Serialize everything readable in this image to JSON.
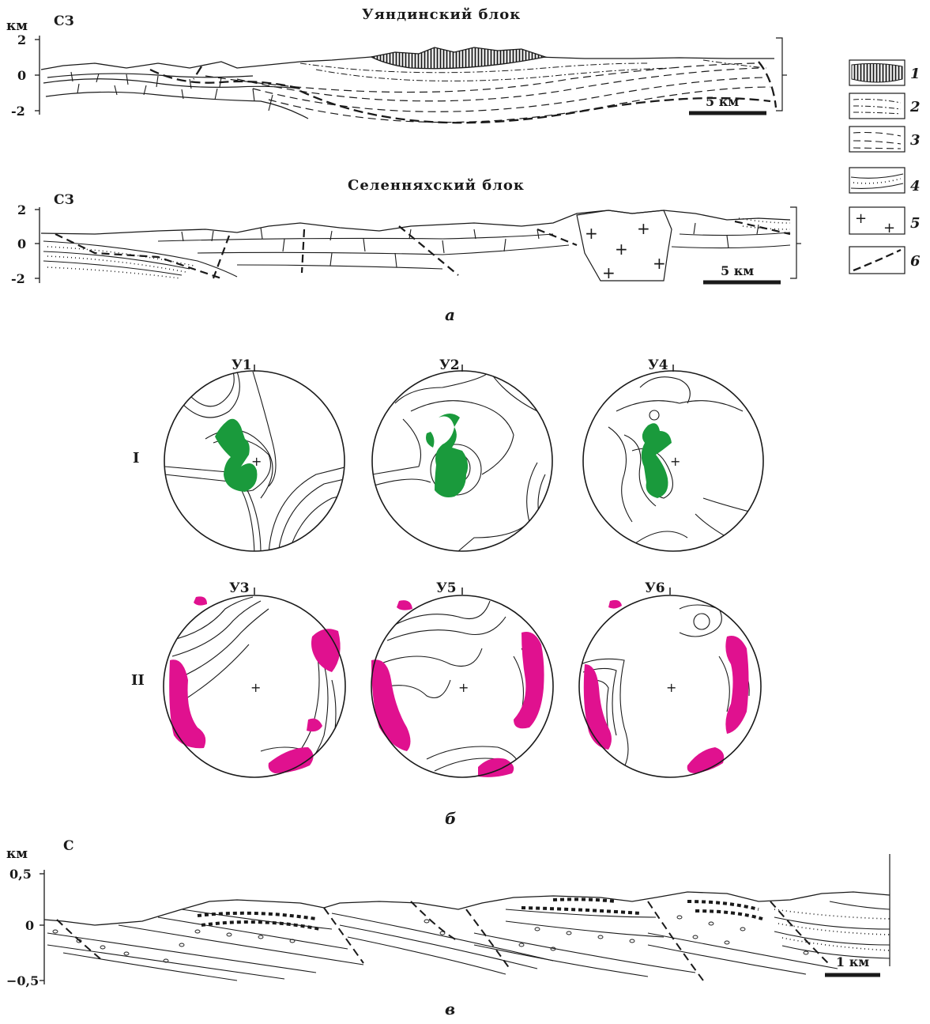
{
  "section_a": {
    "unit": "км",
    "profile1": {
      "title": "Уяндинский блок",
      "direction": "СЗ",
      "ticks": [
        "2",
        "0",
        "-2"
      ],
      "scale": "5 км"
    },
    "profile2": {
      "title": "Селенняхский блок",
      "direction": "СЗ",
      "ticks": [
        "2",
        "0",
        "-2"
      ],
      "scale": "5 км"
    },
    "caption": "а"
  },
  "legend": {
    "items": [
      {
        "num": "1",
        "symbol": "vertical-hatch-icon"
      },
      {
        "num": "2",
        "symbol": "dash-dot-lines-icon"
      },
      {
        "num": "3",
        "symbol": "dashed-lines-icon"
      },
      {
        "num": "4",
        "symbol": "dotted-band-icon"
      },
      {
        "num": "5",
        "symbol": "plus-granite-icon"
      },
      {
        "num": "6",
        "symbol": "bold-dashed-fault-icon"
      }
    ]
  },
  "section_b": {
    "row1": {
      "label": "I",
      "nets": [
        {
          "name": "У1"
        },
        {
          "name": "У2"
        },
        {
          "name": "У4"
        }
      ],
      "fill_color": "#1a9a3c"
    },
    "row2": {
      "label": "II",
      "nets": [
        {
          "name": "У3"
        },
        {
          "name": "У5"
        },
        {
          "name": "У6"
        }
      ],
      "fill_color": "#e0118f"
    },
    "caption": "б"
  },
  "section_c": {
    "unit": "км",
    "direction": "С",
    "ticks": [
      "0,5",
      "0",
      "−0,5"
    ],
    "scale": "1 км",
    "caption": "в"
  }
}
